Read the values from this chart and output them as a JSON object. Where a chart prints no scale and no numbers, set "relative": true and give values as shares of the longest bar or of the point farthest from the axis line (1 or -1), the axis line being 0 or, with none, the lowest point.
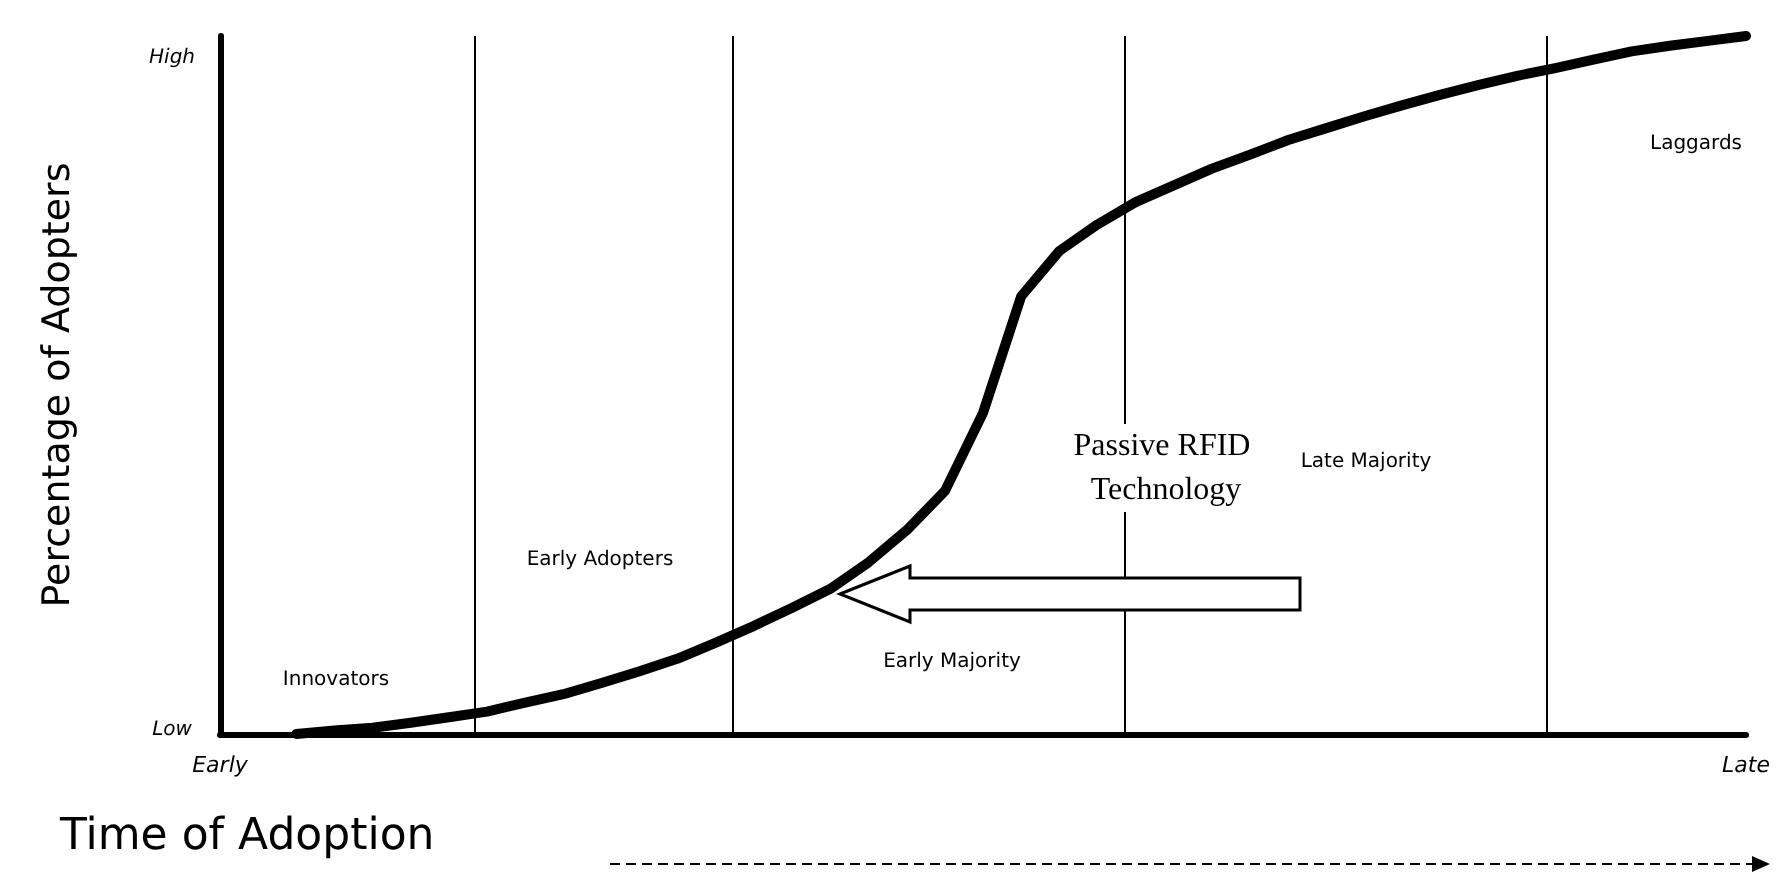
{
  "chart_data": {
    "type": "line",
    "relative": true,
    "xlabel": "Time of Adoption",
    "ylabel": "Percentage of Adopters",
    "categories": [
      "Early",
      null,
      null,
      null,
      null,
      null,
      null,
      null,
      null,
      null,
      null,
      null,
      null,
      null,
      null,
      null,
      null,
      null,
      null,
      null,
      null,
      null,
      null,
      null,
      null,
      null,
      null,
      null,
      null,
      null,
      null,
      null,
      null,
      null,
      null,
      null,
      null,
      null,
      null,
      null,
      "Late"
    ],
    "series": [
      {
        "color": "#000000",
        "values": [
          null,
          null,
          0,
          0.005,
          0.009,
          0.016,
          0.024,
          0.032,
          0.045,
          0.057,
          0.073,
          0.09,
          0.108,
          0.131,
          0.155,
          0.181,
          0.208,
          0.246,
          0.292,
          0.348,
          0.46,
          0.627,
          0.692,
          0.73,
          0.762,
          0.786,
          0.81,
          0.83,
          0.851,
          0.868,
          0.885,
          0.901,
          0.916,
          0.93,
          0.943,
          0.954,
          0.966,
          0.978,
          0.986,
          0.993,
          1
        ]
      }
    ],
    "annotations": [
      "Innovators",
      "Early Adopters",
      "Early Majority",
      "Late Majority",
      "Laggards",
      "Passive RFID Technology",
      "High",
      "Low"
    ],
    "marker": "none",
    "line_style": "solid"
  }
}
